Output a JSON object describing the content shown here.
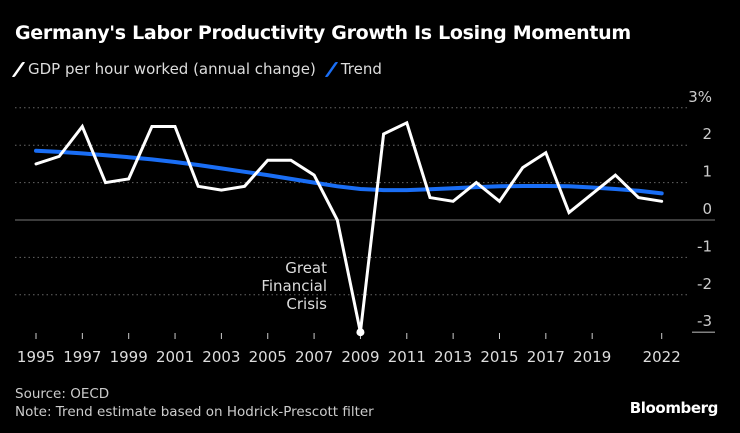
{
  "chart_data": {
    "type": "line",
    "title": "Germany's Labor Productivity Growth Is Losing Momentum",
    "x": [
      1995,
      1996,
      1997,
      1998,
      1999,
      2000,
      2001,
      2002,
      2003,
      2004,
      2005,
      2006,
      2007,
      2008,
      2009,
      2010,
      2011,
      2012,
      2013,
      2014,
      2015,
      2016,
      2017,
      2018,
      2019,
      2020,
      2021,
      2022
    ],
    "series": [
      {
        "name": "GDP per hour worked (annual change)",
        "color": "#ffffff",
        "values": [
          1.5,
          1.7,
          2.5,
          1.0,
          1.1,
          2.5,
          2.5,
          0.9,
          0.8,
          0.9,
          1.6,
          1.6,
          1.2,
          0.0,
          -3.0,
          2.3,
          2.6,
          0.6,
          0.5,
          1.0,
          0.5,
          1.4,
          1.8,
          0.2,
          0.7,
          1.2,
          0.6,
          0.5
        ]
      },
      {
        "name": "Trend",
        "color": "#1a6ef5",
        "values": [
          1.85,
          1.82,
          1.78,
          1.73,
          1.68,
          1.62,
          1.55,
          1.47,
          1.38,
          1.29,
          1.2,
          1.1,
          1.0,
          0.9,
          0.83,
          0.8,
          0.8,
          0.82,
          0.85,
          0.88,
          0.9,
          0.91,
          0.91,
          0.9,
          0.87,
          0.83,
          0.78,
          0.71
        ]
      }
    ],
    "x_tick_labels": [
      "1995",
      "1997",
      "1999",
      "2001",
      "2003",
      "2005",
      "2007",
      "2009",
      "2011",
      "2013",
      "2015",
      "2017",
      "2019",
      "2022"
    ],
    "y_tick_labels": [
      "3%",
      "2",
      "1",
      "0",
      "-1",
      "-2",
      "-3"
    ],
    "y_ticks": [
      3,
      2,
      1,
      0,
      -1,
      -2,
      -3
    ],
    "ylim": [
      -3,
      3
    ],
    "grid": true,
    "legend": "top-left",
    "annotation": {
      "text": [
        "Great",
        "Financial",
        "Crisis"
      ],
      "x": 2009,
      "y": -3.0
    }
  },
  "footer": {
    "source": "Source: OECD",
    "note": "Note: Trend estimate based on Hodrick-Prescott filter"
  },
  "brand": "Bloomberg"
}
